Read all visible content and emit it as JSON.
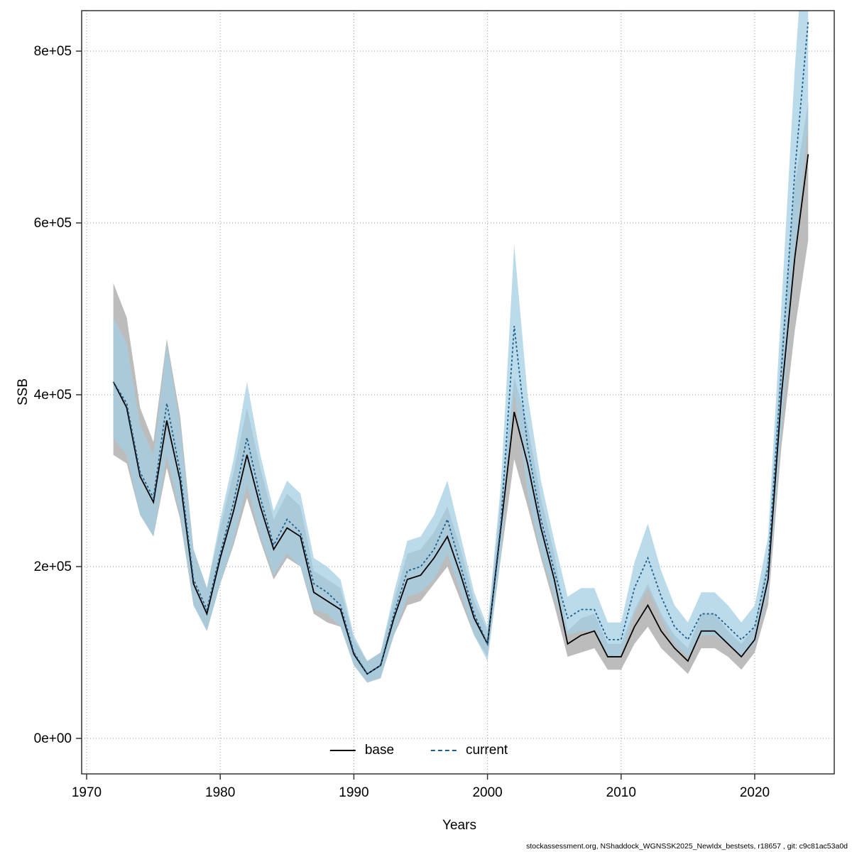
{
  "page": {
    "background": "#ffffff"
  },
  "footer": {
    "text": "stockassessment.org, NShaddock_WGNSSK2025_NewIdx_bestsets, r18657 , git: c9c81ac53a0d"
  },
  "chart_data": {
    "type": "line",
    "title": "",
    "xlabel": "Years",
    "ylabel": "SSB",
    "grid": true,
    "legend_position": "bottom-center-inside",
    "xlim": [
      1969.6,
      2026
    ],
    "ylim": [
      -41000,
      847000
    ],
    "x_ticks": [
      1970,
      1980,
      1990,
      2000,
      2010,
      2020
    ],
    "y_ticks": [
      0,
      200000,
      400000,
      600000,
      800000
    ],
    "y_tick_labels": [
      "0e+00",
      "2e+05",
      "4e+05",
      "6e+05",
      "8e+05"
    ],
    "legend": [
      {
        "label": "base",
        "color": "#000000",
        "dash": "solid"
      },
      {
        "label": "current",
        "color": "#1b5e8e",
        "dash": "dotted"
      }
    ],
    "years": [
      1972,
      1973,
      1974,
      1975,
      1976,
      1977,
      1978,
      1979,
      1980,
      1981,
      1982,
      1983,
      1984,
      1985,
      1986,
      1987,
      1988,
      1989,
      1990,
      1991,
      1992,
      1993,
      1994,
      1995,
      1996,
      1997,
      1998,
      1999,
      2000,
      2001,
      2002,
      2003,
      2004,
      2005,
      2006,
      2007,
      2008,
      2009,
      2010,
      2011,
      2012,
      2013,
      2014,
      2015,
      2016,
      2017,
      2018,
      2019,
      2020,
      2021,
      2022,
      2023,
      2024
    ],
    "series": [
      {
        "name": "base",
        "color": "#000000",
        "dash": "",
        "band_color": "#b0b0b0",
        "band_opacity": 0.85,
        "values": [
          415000,
          385000,
          305000,
          275000,
          370000,
          300000,
          180000,
          145000,
          210000,
          265000,
          330000,
          270000,
          220000,
          245000,
          235000,
          170000,
          160000,
          150000,
          98000,
          75000,
          85000,
          140000,
          185000,
          190000,
          210000,
          235000,
          190000,
          140000,
          110000,
          245000,
          380000,
          320000,
          245000,
          185000,
          110000,
          120000,
          125000,
          95000,
          95000,
          130000,
          155000,
          125000,
          105000,
          90000,
          125000,
          125000,
          110000,
          95000,
          115000,
          185000,
          400000,
          560000,
          680000
        ],
        "lo": [
          330000,
          320000,
          260000,
          235000,
          315000,
          255000,
          155000,
          125000,
          180000,
          225000,
          280000,
          230000,
          185000,
          210000,
          200000,
          145000,
          135000,
          130000,
          85000,
          65000,
          70000,
          120000,
          155000,
          160000,
          180000,
          200000,
          160000,
          120000,
          95000,
          210000,
          325000,
          270000,
          210000,
          155000,
          95000,
          100000,
          105000,
          80000,
          80000,
          110000,
          130000,
          105000,
          90000,
          75000,
          105000,
          105000,
          95000,
          80000,
          100000,
          155000,
          340000,
          475000,
          580000
        ],
        "hi": [
          530000,
          490000,
          385000,
          345000,
          465000,
          375000,
          220000,
          175000,
          245000,
          310000,
          385000,
          315000,
          255000,
          285000,
          270000,
          195000,
          185000,
          175000,
          115000,
          90000,
          100000,
          160000,
          215000,
          220000,
          240000,
          270000,
          220000,
          160000,
          125000,
          280000,
          420000,
          365000,
          280000,
          215000,
          125000,
          140000,
          145000,
          110000,
          110000,
          150000,
          180000,
          145000,
          120000,
          105000,
          145000,
          145000,
          125000,
          110000,
          130000,
          215000,
          460000,
          645000,
          740000
        ]
      },
      {
        "name": "current",
        "color": "#1b5e8e",
        "dash": "3 3",
        "band_color": "#a4cfe4",
        "band_opacity": 0.75,
        "values": [
          415000,
          390000,
          310000,
          280000,
          390000,
          310000,
          185000,
          150000,
          215000,
          275000,
          350000,
          280000,
          225000,
          255000,
          240000,
          180000,
          170000,
          155000,
          100000,
          75000,
          85000,
          145000,
          195000,
          200000,
          220000,
          255000,
          200000,
          145000,
          110000,
          250000,
          480000,
          340000,
          255000,
          195000,
          140000,
          150000,
          150000,
          115000,
          115000,
          175000,
          210000,
          165000,
          130000,
          115000,
          145000,
          145000,
          130000,
          115000,
          130000,
          200000,
          430000,
          660000,
          835000
        ],
        "lo": [
          350000,
          330000,
          260000,
          235000,
          330000,
          260000,
          155000,
          125000,
          180000,
          230000,
          295000,
          235000,
          190000,
          215000,
          200000,
          150000,
          145000,
          130000,
          85000,
          65000,
          70000,
          120000,
          165000,
          170000,
          185000,
          215000,
          170000,
          120000,
          90000,
          210000,
          405000,
          285000,
          215000,
          165000,
          120000,
          125000,
          125000,
          95000,
          95000,
          145000,
          175000,
          140000,
          110000,
          95000,
          120000,
          120000,
          110000,
          95000,
          110000,
          170000,
          360000,
          555000,
          715000
        ],
        "hi": [
          490000,
          460000,
          365000,
          330000,
          460000,
          365000,
          220000,
          175000,
          255000,
          325000,
          415000,
          330000,
          265000,
          300000,
          285000,
          210000,
          200000,
          185000,
          120000,
          90000,
          100000,
          170000,
          230000,
          235000,
          260000,
          300000,
          235000,
          170000,
          130000,
          295000,
          575000,
          400000,
          300000,
          230000,
          165000,
          175000,
          175000,
          135000,
          135000,
          205000,
          250000,
          195000,
          155000,
          135000,
          170000,
          170000,
          155000,
          135000,
          155000,
          235000,
          505000,
          780000,
          1000000
        ]
      }
    ]
  }
}
